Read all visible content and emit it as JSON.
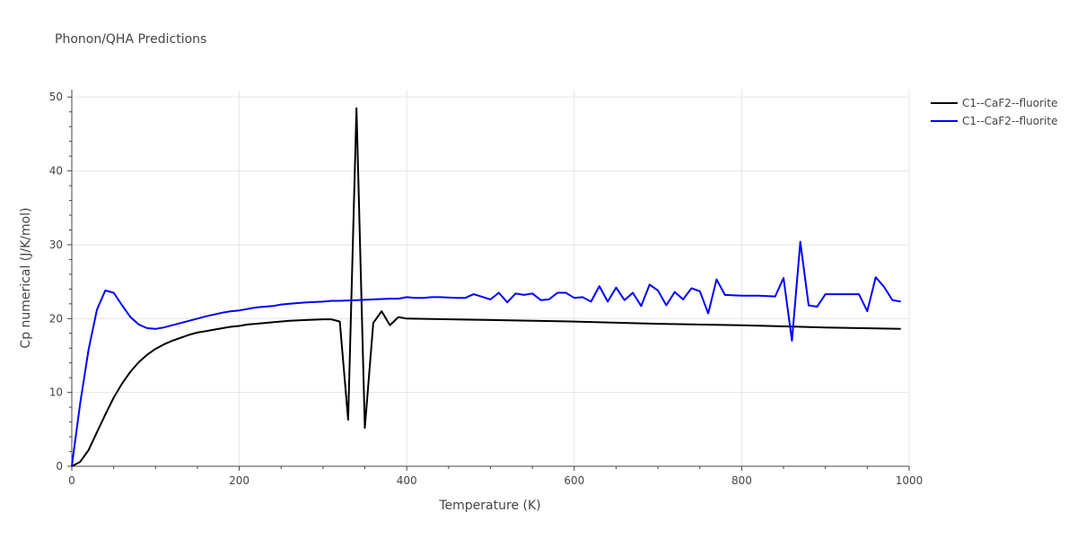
{
  "chart_data": {
    "type": "line",
    "title": "Phonon/QHA Predictions",
    "xlabel": "Temperature (K)",
    "ylabel": "Cp numerical (J/K/mol)",
    "xlim": [
      0,
      1000
    ],
    "ylim": [
      0,
      51
    ],
    "xticks": [
      0,
      200,
      400,
      600,
      800,
      1000
    ],
    "yticks": [
      0,
      10,
      20,
      30,
      40,
      50
    ],
    "grid": true,
    "legend_position": "top-right",
    "series": [
      {
        "name": "C1--CaF2--fluorite",
        "color": "#000000",
        "x": [
          0,
          10,
          20,
          30,
          40,
          50,
          60,
          70,
          80,
          90,
          100,
          110,
          120,
          130,
          140,
          150,
          160,
          170,
          180,
          190,
          200,
          210,
          220,
          240,
          260,
          280,
          300,
          310,
          320,
          330,
          340,
          350,
          360,
          370,
          380,
          390,
          400,
          500,
          600,
          700,
          800,
          900,
          990
        ],
        "y": [
          0,
          0.6,
          2.2,
          4.6,
          7.0,
          9.3,
          11.2,
          12.8,
          14.1,
          15.1,
          15.9,
          16.5,
          17.0,
          17.4,
          17.8,
          18.1,
          18.3,
          18.5,
          18.7,
          18.9,
          19.0,
          19.2,
          19.3,
          19.5,
          19.7,
          19.8,
          19.9,
          19.9,
          19.6,
          6.3,
          48.5,
          5.2,
          19.4,
          21.0,
          19.1,
          20.2,
          20.0,
          19.8,
          19.6,
          19.3,
          19.1,
          18.8,
          18.6
        ]
      },
      {
        "name": "C1--CaF2--fluorite",
        "color": "#0000ff",
        "x": [
          0,
          10,
          20,
          30,
          40,
          50,
          60,
          70,
          80,
          90,
          100,
          110,
          120,
          140,
          160,
          180,
          190,
          200,
          220,
          240,
          250,
          260,
          280,
          300,
          310,
          320,
          340,
          360,
          380,
          390,
          400,
          410,
          420,
          430,
          440,
          460,
          470,
          480,
          500,
          510,
          520,
          530,
          540,
          550,
          560,
          570,
          580,
          590,
          600,
          610,
          620,
          630,
          640,
          650,
          660,
          670,
          680,
          690,
          700,
          710,
          720,
          730,
          740,
          750,
          760,
          770,
          780,
          800,
          820,
          840,
          850,
          860,
          870,
          880,
          890,
          900,
          920,
          940,
          950,
          960,
          970,
          980,
          990
        ],
        "y": [
          0,
          8.5,
          15.8,
          21.2,
          23.8,
          23.5,
          21.8,
          20.2,
          19.2,
          18.7,
          18.6,
          18.8,
          19.1,
          19.7,
          20.3,
          20.8,
          21.0,
          21.1,
          21.5,
          21.7,
          21.9,
          22.0,
          22.2,
          22.3,
          22.4,
          22.4,
          22.5,
          22.6,
          22.7,
          22.7,
          22.9,
          22.8,
          22.8,
          22.9,
          22.9,
          22.8,
          22.8,
          23.3,
          22.6,
          23.5,
          22.2,
          23.4,
          23.2,
          23.4,
          22.5,
          22.6,
          23.5,
          23.5,
          22.8,
          22.9,
          22.3,
          24.4,
          22.3,
          24.2,
          22.5,
          23.5,
          21.7,
          24.6,
          23.8,
          21.8,
          23.6,
          22.6,
          24.1,
          23.7,
          20.7,
          25.3,
          23.2,
          23.1,
          23.1,
          23.0,
          25.5,
          17.0,
          30.4,
          21.8,
          21.6,
          23.3,
          23.3,
          23.3,
          21.0,
          25.6,
          24.3,
          22.5,
          22.3
        ]
      }
    ]
  }
}
